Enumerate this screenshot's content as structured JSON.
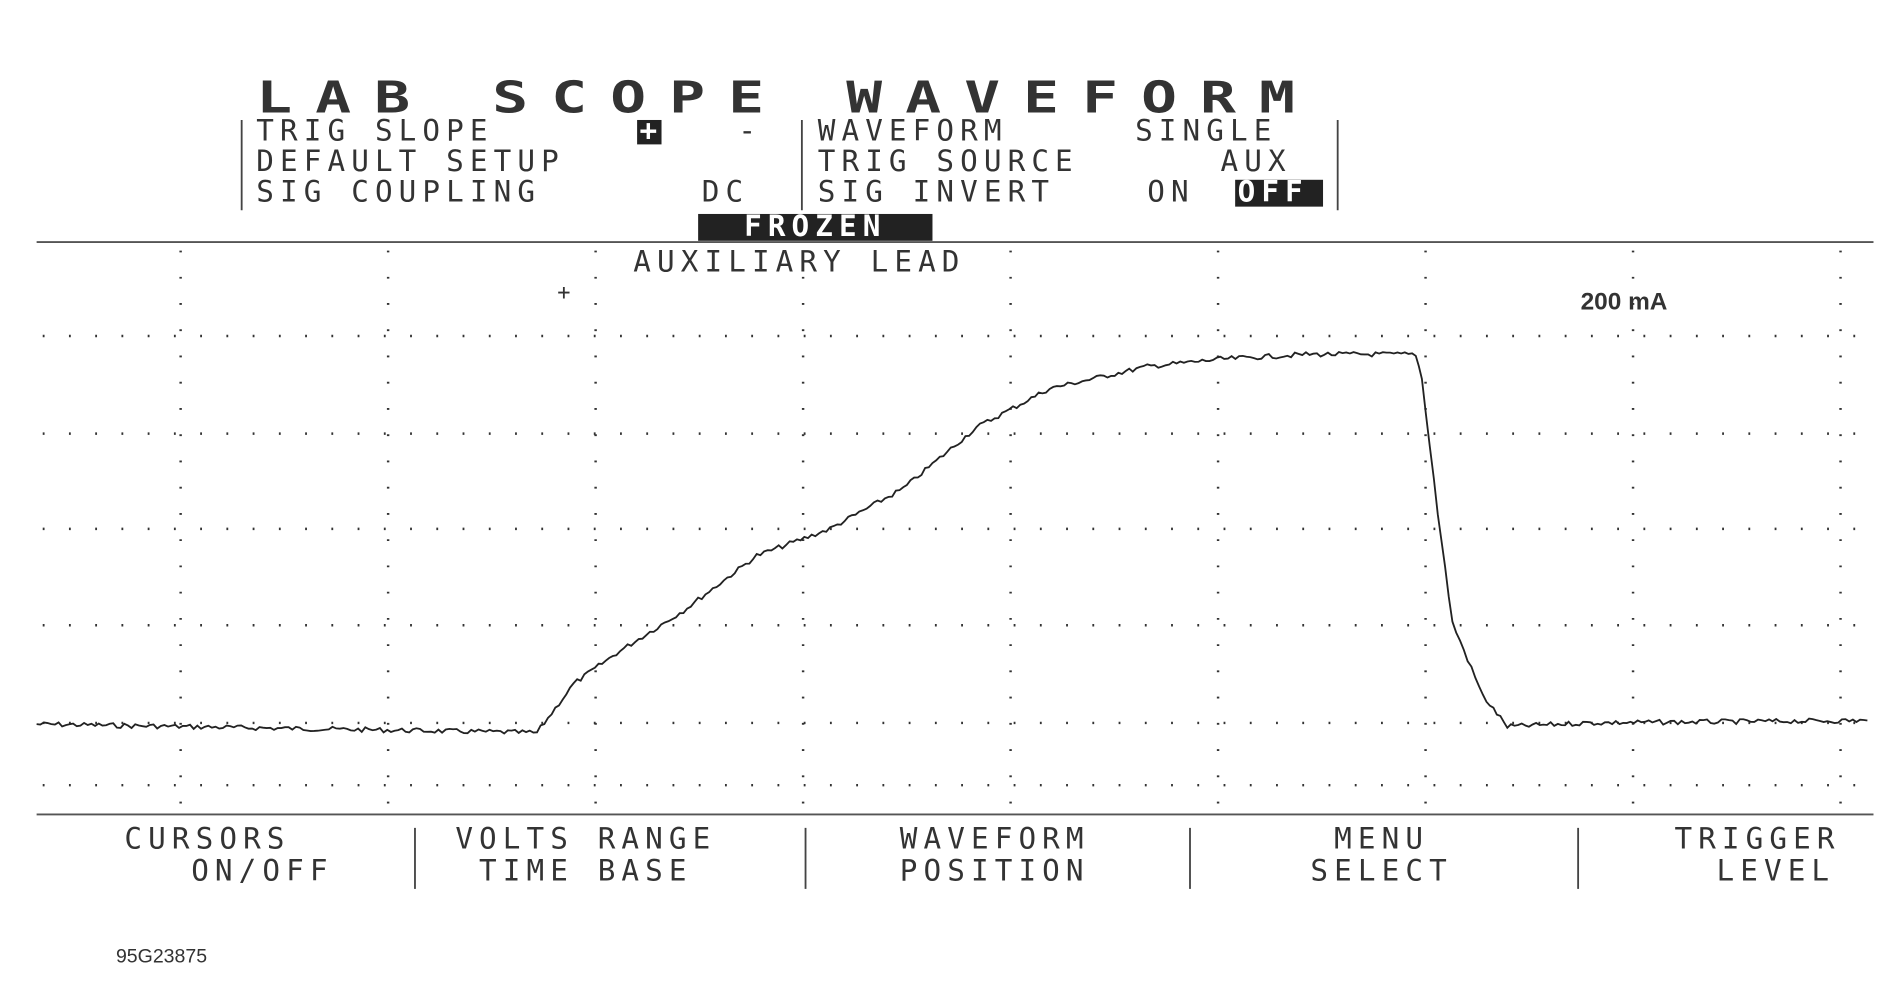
{
  "header": {
    "title": "LAB SCOPE WAVEFORM"
  },
  "menu": {
    "left": [
      {
        "label": "TRIG SLOPE",
        "options": [
          "+",
          "-"
        ]
      },
      {
        "label": "DEFAULT SETUP"
      },
      {
        "label": "SIG COUPLING",
        "value": "DC"
      }
    ],
    "right": [
      {
        "label": "WAVEFORM",
        "value": "SINGLE"
      },
      {
        "label": "TRIG SOURCE",
        "value": "AUX"
      },
      {
        "label": "SIG INVERT",
        "options": [
          "ON",
          "OFF"
        ]
      }
    ]
  },
  "status": "FROZEN",
  "screen": {
    "channel_label": "AUXILIARY LEAD",
    "scale_label": "200 mA",
    "marker": "+"
  },
  "softkeys": [
    {
      "line1": "CURSORS",
      "line2": "ON/OFF"
    },
    {
      "line1": "VOLTS RANGE",
      "line2": "TIME BASE"
    },
    {
      "line1": "WAVEFORM",
      "line2": "POSITION"
    },
    {
      "line1": "MENU",
      "line2": "SELECT"
    },
    {
      "line1": "TRIGGER",
      "line2": "LEVEL"
    }
  ],
  "figure_id": "95G23875"
}
